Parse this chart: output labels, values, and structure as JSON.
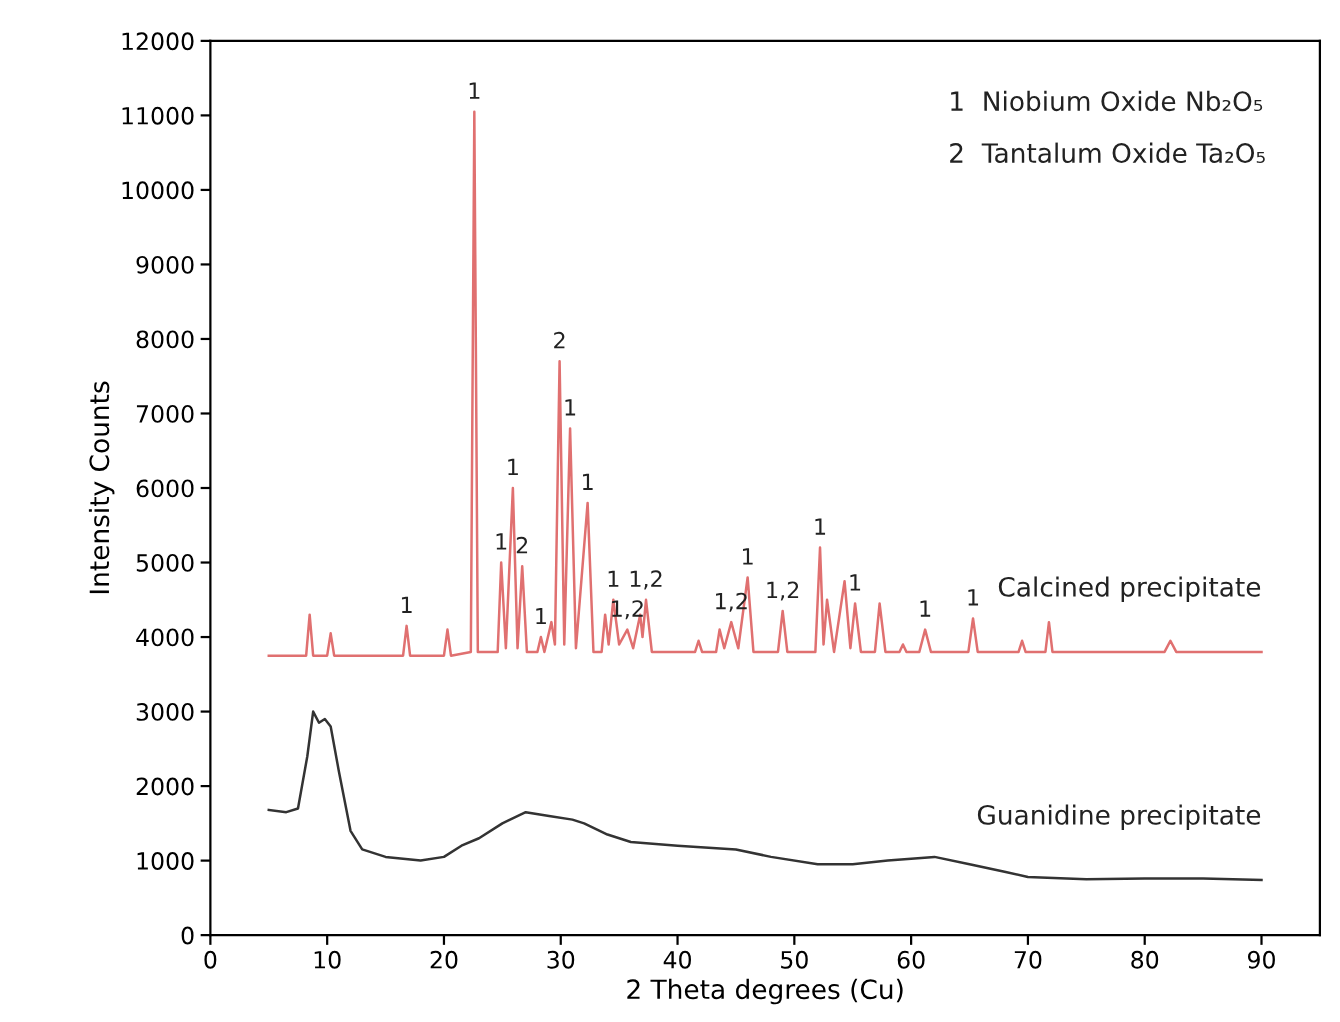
{
  "chart_data": {
    "type": "line",
    "xlabel": "2 Theta degrees (Cu)",
    "ylabel": "Intensity Counts",
    "xlim": [
      0,
      95
    ],
    "xticks": [
      0,
      10,
      20,
      30,
      40,
      50,
      60,
      70,
      80,
      90
    ],
    "ylim": [
      0,
      12000
    ],
    "yticks": [
      0,
      1000,
      2000,
      3000,
      4000,
      5000,
      6000,
      7000,
      8000,
      9000,
      10000,
      11000,
      12000
    ],
    "grid": false,
    "legend": false,
    "marker": "none",
    "line_style": "solid",
    "series": [
      {
        "name": "Calcined precipitate",
        "color": "#e07070",
        "x": [
          5,
          8.2,
          8.5,
          8.8,
          10.0,
          10.3,
          10.6,
          16.5,
          16.8,
          17.1,
          20.0,
          20.3,
          20.6,
          22.3,
          22.6,
          22.9,
          24.6,
          24.9,
          25.3,
          25.9,
          26.3,
          26.7,
          27.1,
          28.0,
          28.3,
          28.6,
          29.2,
          29.5,
          29.9,
          30.3,
          30.8,
          31.3,
          32.3,
          32.8,
          33.5,
          33.8,
          34.1,
          34.5,
          35.0,
          35.7,
          36.2,
          36.8,
          37.0,
          37.3,
          37.8,
          41.5,
          41.8,
          42.1,
          43.3,
          43.6,
          44.0,
          44.6,
          45.2,
          46.0,
          46.5,
          48.6,
          49.0,
          49.4,
          51.8,
          52.2,
          52.5,
          52.8,
          53.4,
          54.3,
          54.8,
          55.2,
          55.7,
          56.9,
          57.3,
          57.8,
          59.0,
          59.3,
          59.6,
          60.7,
          61.2,
          61.7,
          64.9,
          65.3,
          65.7,
          69.2,
          69.5,
          69.8,
          71.5,
          71.8,
          72.1,
          81.7,
          82.2,
          82.7,
          90
        ],
        "values": [
          3750,
          3750,
          4300,
          3750,
          3750,
          4050,
          3750,
          3750,
          4150,
          3750,
          3750,
          4100,
          3750,
          3800,
          11050,
          3800,
          3800,
          5000,
          3850,
          6000,
          3850,
          4950,
          3800,
          3800,
          4000,
          3800,
          4200,
          3900,
          7700,
          3900,
          6800,
          3850,
          5800,
          3800,
          3800,
          4300,
          3900,
          4500,
          3900,
          4100,
          3850,
          4300,
          4000,
          4500,
          3800,
          3800,
          3950,
          3800,
          3800,
          4100,
          3850,
          4200,
          3850,
          4800,
          3800,
          3800,
          4350,
          3800,
          3800,
          5200,
          3900,
          4500,
          3800,
          4750,
          3850,
          4450,
          3800,
          3800,
          4450,
          3800,
          3800,
          3900,
          3800,
          3800,
          4100,
          3800,
          3800,
          4250,
          3800,
          3800,
          3950,
          3800,
          3800,
          4200,
          3800,
          3800,
          3950,
          3800,
          3800
        ]
      },
      {
        "name": "Guanidine precipitate",
        "color": "#333333",
        "x": [
          5,
          6.5,
          7.5,
          8.3,
          8.8,
          9.3,
          9.8,
          10.3,
          11,
          12,
          13,
          15,
          18,
          20,
          21.5,
          23,
          25,
          27,
          29,
          31,
          32,
          34,
          36,
          40,
          45,
          48,
          52,
          55,
          58,
          62,
          65,
          68,
          70,
          75,
          80,
          85,
          90
        ],
        "values": [
          1680,
          1650,
          1700,
          2400,
          3000,
          2850,
          2900,
          2800,
          2200,
          1400,
          1150,
          1050,
          1000,
          1050,
          1200,
          1300,
          1500,
          1650,
          1600,
          1550,
          1500,
          1350,
          1250,
          1200,
          1150,
          1050,
          950,
          950,
          1000,
          1050,
          950,
          850,
          780,
          750,
          760,
          760,
          740
        ]
      }
    ],
    "annotations": [
      "1  Niobium Oxide Nb₂O₅",
      "2  Tantalum Oxide Ta₂O₅",
      {
        "text": "1",
        "x": 16.8,
        "y": 4150
      },
      {
        "text": "1",
        "x": 22.6,
        "y": 11050
      },
      {
        "text": "1",
        "x": 24.9,
        "y": 5000
      },
      {
        "text": "1",
        "x": 25.9,
        "y": 6000
      },
      {
        "text": "2",
        "x": 26.7,
        "y": 4950
      },
      {
        "text": "1",
        "x": 28.3,
        "y": 4000
      },
      {
        "text": "2",
        "x": 29.9,
        "y": 7700
      },
      {
        "text": "1",
        "x": 30.8,
        "y": 6800
      },
      {
        "text": "1",
        "x": 32.3,
        "y": 5800
      },
      {
        "text": "1",
        "x": 34.5,
        "y": 4500
      },
      {
        "text": "1,2",
        "x": 35.7,
        "y": 4100
      },
      {
        "text": "1,2",
        "x": 37.3,
        "y": 4500
      },
      {
        "text": "1,2",
        "x": 44.6,
        "y": 4200
      },
      {
        "text": "1",
        "x": 46.0,
        "y": 4800
      },
      {
        "text": "1,2",
        "x": 49.0,
        "y": 4350
      },
      {
        "text": "1",
        "x": 52.2,
        "y": 5200
      },
      {
        "text": "1",
        "x": 55.2,
        "y": 4450
      },
      {
        "text": "1",
        "x": 61.2,
        "y": 4100
      },
      {
        "text": "1",
        "x": 65.3,
        "y": 4250
      }
    ]
  }
}
